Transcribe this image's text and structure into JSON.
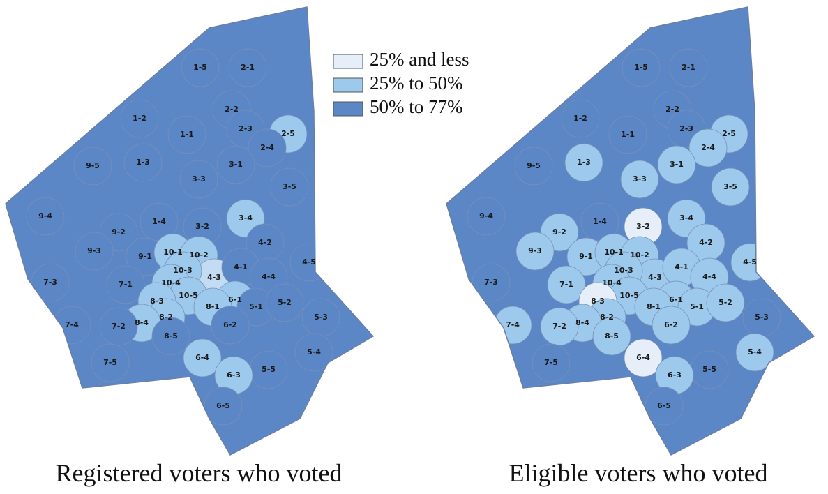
{
  "legend": [
    {
      "label": "25% and less",
      "color": "#e6eff9"
    },
    {
      "label": "25% to 50%",
      "color": "#9dc9ec"
    },
    {
      "label": "50% to 77%",
      "color": "#5b87c6"
    }
  ],
  "maps": [
    {
      "caption": "Registered voters who voted",
      "districts": [
        {
          "label": "1-5",
          "color": "#5b87c6"
        },
        {
          "label": "2-1",
          "color": "#5b87c6"
        },
        {
          "label": "1-2",
          "color": "#5b87c6"
        },
        {
          "label": "2-2",
          "color": "#5b87c6"
        },
        {
          "label": "1-1",
          "color": "#5b87c6"
        },
        {
          "label": "2-3",
          "color": "#5b87c6"
        },
        {
          "label": "2-5",
          "color": "#9dc9ec"
        },
        {
          "label": "2-4",
          "color": "#5b87c6"
        },
        {
          "label": "9-5",
          "color": "#5b87c6"
        },
        {
          "label": "1-3",
          "color": "#5b87c6"
        },
        {
          "label": "3-1",
          "color": "#5b87c6"
        },
        {
          "label": "3-3",
          "color": "#5b87c6"
        },
        {
          "label": "3-5",
          "color": "#5b87c6"
        },
        {
          "label": "9-4",
          "color": "#5b87c6"
        },
        {
          "label": "9-2",
          "color": "#5b87c6"
        },
        {
          "label": "1-4",
          "color": "#5b87c6"
        },
        {
          "label": "3-2",
          "color": "#5b87c6"
        },
        {
          "label": "3-4",
          "color": "#9dc9ec"
        },
        {
          "label": "4-2",
          "color": "#5b87c6"
        },
        {
          "label": "9-3",
          "color": "#5b87c6"
        },
        {
          "label": "9-1",
          "color": "#5b87c6"
        },
        {
          "label": "10-1",
          "color": "#9dc9ec"
        },
        {
          "label": "10-2",
          "color": "#9dc9ec"
        },
        {
          "label": "4-5",
          "color": "#5b87c6"
        },
        {
          "label": "4-3",
          "color": "#c4dcf2"
        },
        {
          "label": "10-3",
          "color": "#9dc9ec"
        },
        {
          "label": "4-1",
          "color": "#5b87c6"
        },
        {
          "label": "4-4",
          "color": "#5b87c6"
        },
        {
          "label": "7-3",
          "color": "#5b87c6"
        },
        {
          "label": "7-1",
          "color": "#5b87c6"
        },
        {
          "label": "10-4",
          "color": "#9dc9ec"
        },
        {
          "label": "10-5",
          "color": "#9dc9ec"
        },
        {
          "label": "6-1",
          "color": "#9dc9ec"
        },
        {
          "label": "5-1",
          "color": "#5b87c6"
        },
        {
          "label": "5-2",
          "color": "#5b87c6"
        },
        {
          "label": "8-3",
          "color": "#9dc9ec"
        },
        {
          "label": "8-1",
          "color": "#9dc9ec"
        },
        {
          "label": "5-3",
          "color": "#5b87c6"
        },
        {
          "label": "8-2",
          "color": "#9dc9ec"
        },
        {
          "label": "8-4",
          "color": "#9dc9ec"
        },
        {
          "label": "6-2",
          "color": "#5b87c6"
        },
        {
          "label": "7-4",
          "color": "#5b87c6"
        },
        {
          "label": "7-2",
          "color": "#5b87c6"
        },
        {
          "label": "8-5",
          "color": "#5b87c6"
        },
        {
          "label": "5-4",
          "color": "#5b87c6"
        },
        {
          "label": "6-4",
          "color": "#9dc9ec"
        },
        {
          "label": "5-5",
          "color": "#5b87c6"
        },
        {
          "label": "7-5",
          "color": "#5b87c6"
        },
        {
          "label": "6-3",
          "color": "#9dc9ec"
        },
        {
          "label": "6-5",
          "color": "#5b87c6"
        }
      ]
    },
    {
      "caption": "Eligible voters who voted",
      "districts": [
        {
          "label": "1-5",
          "color": "#5b87c6"
        },
        {
          "label": "2-1",
          "color": "#5b87c6"
        },
        {
          "label": "1-2",
          "color": "#5b87c6"
        },
        {
          "label": "2-2",
          "color": "#5b87c6"
        },
        {
          "label": "1-1",
          "color": "#5b87c6"
        },
        {
          "label": "2-3",
          "color": "#5b87c6"
        },
        {
          "label": "2-5",
          "color": "#9dc9ec"
        },
        {
          "label": "2-4",
          "color": "#9dc9ec"
        },
        {
          "label": "9-5",
          "color": "#5b87c6"
        },
        {
          "label": "1-3",
          "color": "#9dc9ec"
        },
        {
          "label": "3-1",
          "color": "#9dc9ec"
        },
        {
          "label": "3-3",
          "color": "#9dc9ec"
        },
        {
          "label": "3-5",
          "color": "#9dc9ec"
        },
        {
          "label": "9-4",
          "color": "#5b87c6"
        },
        {
          "label": "9-2",
          "color": "#9dc9ec"
        },
        {
          "label": "1-4",
          "color": "#5b87c6"
        },
        {
          "label": "3-2",
          "color": "#e6eff9"
        },
        {
          "label": "3-4",
          "color": "#9dc9ec"
        },
        {
          "label": "4-2",
          "color": "#9dc9ec"
        },
        {
          "label": "9-3",
          "color": "#9dc9ec"
        },
        {
          "label": "9-1",
          "color": "#9dc9ec"
        },
        {
          "label": "10-1",
          "color": "#9dc9ec"
        },
        {
          "label": "10-2",
          "color": "#9dc9ec"
        },
        {
          "label": "4-5",
          "color": "#9dc9ec"
        },
        {
          "label": "4-3",
          "color": "#9dc9ec"
        },
        {
          "label": "10-3",
          "color": "#9dc9ec"
        },
        {
          "label": "4-1",
          "color": "#9dc9ec"
        },
        {
          "label": "4-4",
          "color": "#9dc9ec"
        },
        {
          "label": "7-3",
          "color": "#5b87c6"
        },
        {
          "label": "7-1",
          "color": "#9dc9ec"
        },
        {
          "label": "10-4",
          "color": "#9dc9ec"
        },
        {
          "label": "10-5",
          "color": "#9dc9ec"
        },
        {
          "label": "6-1",
          "color": "#9dc9ec"
        },
        {
          "label": "5-1",
          "color": "#9dc9ec"
        },
        {
          "label": "5-2",
          "color": "#9dc9ec"
        },
        {
          "label": "8-3",
          "color": "#e6eff9"
        },
        {
          "label": "8-1",
          "color": "#9dc9ec"
        },
        {
          "label": "5-3",
          "color": "#5b87c6"
        },
        {
          "label": "8-2",
          "color": "#9dc9ec"
        },
        {
          "label": "8-4",
          "color": "#9dc9ec"
        },
        {
          "label": "6-2",
          "color": "#9dc9ec"
        },
        {
          "label": "7-4",
          "color": "#9dc9ec"
        },
        {
          "label": "7-2",
          "color": "#9dc9ec"
        },
        {
          "label": "8-5",
          "color": "#9dc9ec"
        },
        {
          "label": "5-4",
          "color": "#9dc9ec"
        },
        {
          "label": "6-4",
          "color": "#e6eff9"
        },
        {
          "label": "5-5",
          "color": "#5b87c6"
        },
        {
          "label": "7-5",
          "color": "#5b87c6"
        },
        {
          "label": "6-3",
          "color": "#9dc9ec"
        },
        {
          "label": "6-5",
          "color": "#5b87c6"
        }
      ]
    }
  ]
}
